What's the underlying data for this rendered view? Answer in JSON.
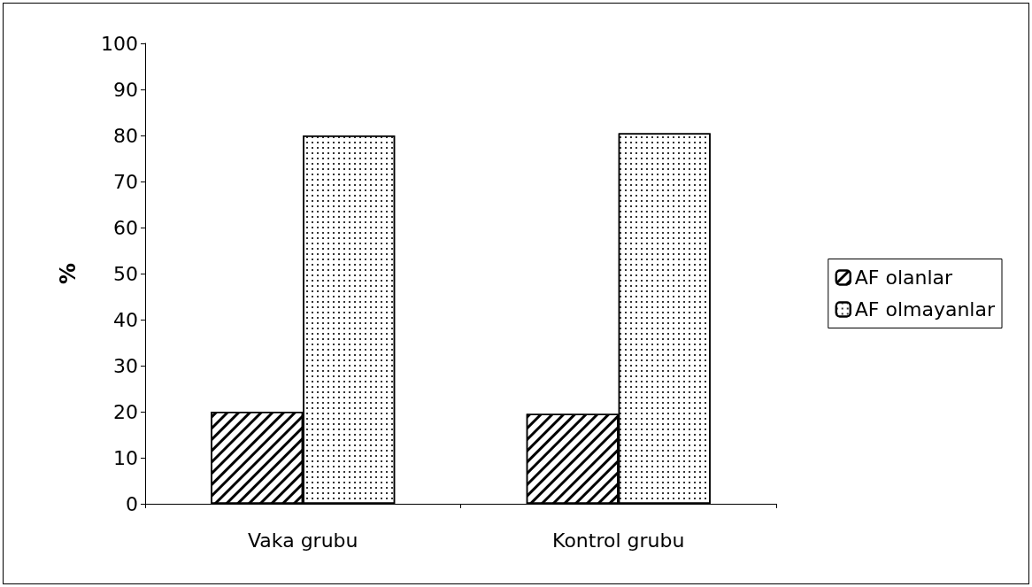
{
  "chart_data": {
    "type": "bar",
    "ylabel": "%",
    "categories": [
      "Vaka grubu",
      "Kontrol grubu"
    ],
    "series": [
      {
        "name": "AF olanlar",
        "color": "#ffffff",
        "values": [
          20,
          19.5
        ]
      },
      {
        "name": "AF olmayanlar",
        "color": "#ffffff",
        "values": [
          80,
          80.5
        ]
      }
    ],
    "ylim": [
      0,
      100
    ],
    "yticks": [
      0,
      10,
      20,
      30,
      40,
      50,
      60,
      70,
      80,
      90,
      100
    ],
    "grid": false,
    "legend": "right"
  }
}
